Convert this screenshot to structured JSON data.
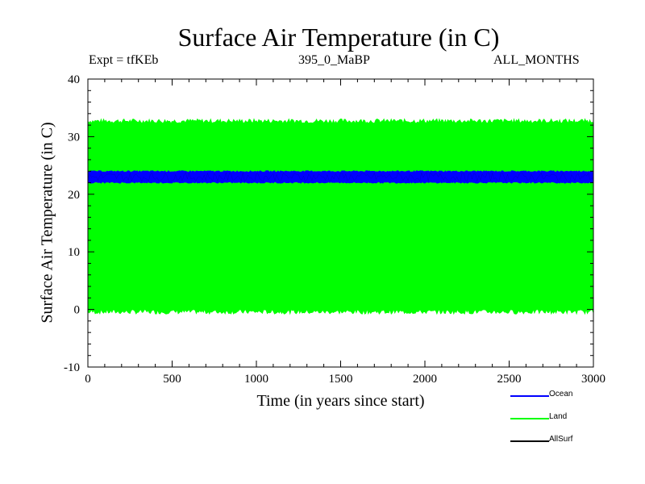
{
  "chart_data": {
    "type": "line",
    "title": "Surface Air Temperature (in C)",
    "subtitle_left": "Expt = tfKEb",
    "subtitle_center": "395_0_MaBP",
    "subtitle_right": "ALL_MONTHS",
    "xlabel": "Time (in years since start)",
    "ylabel": "Surface Air Temperature (in C)",
    "xlim": [
      0,
      3000
    ],
    "ylim": [
      -10,
      40
    ],
    "x_ticks": [
      0,
      500,
      1000,
      1500,
      2000,
      2500,
      3000
    ],
    "y_ticks": [
      -10,
      0,
      10,
      20,
      30,
      40
    ],
    "series": [
      {
        "name": "Ocean",
        "color": "#0000ff",
        "band": [
          22.0,
          24.0
        ],
        "mean": 23.0
      },
      {
        "name": "Land",
        "color": "#00ff00",
        "band": [
          -0.5,
          32.8
        ],
        "mean": 16.0
      },
      {
        "name": "AllSurf",
        "color": "#000000",
        "band": [
          22.2,
          23.8
        ],
        "mean": 23.0
      }
    ],
    "legend_position": "bottom-right"
  }
}
